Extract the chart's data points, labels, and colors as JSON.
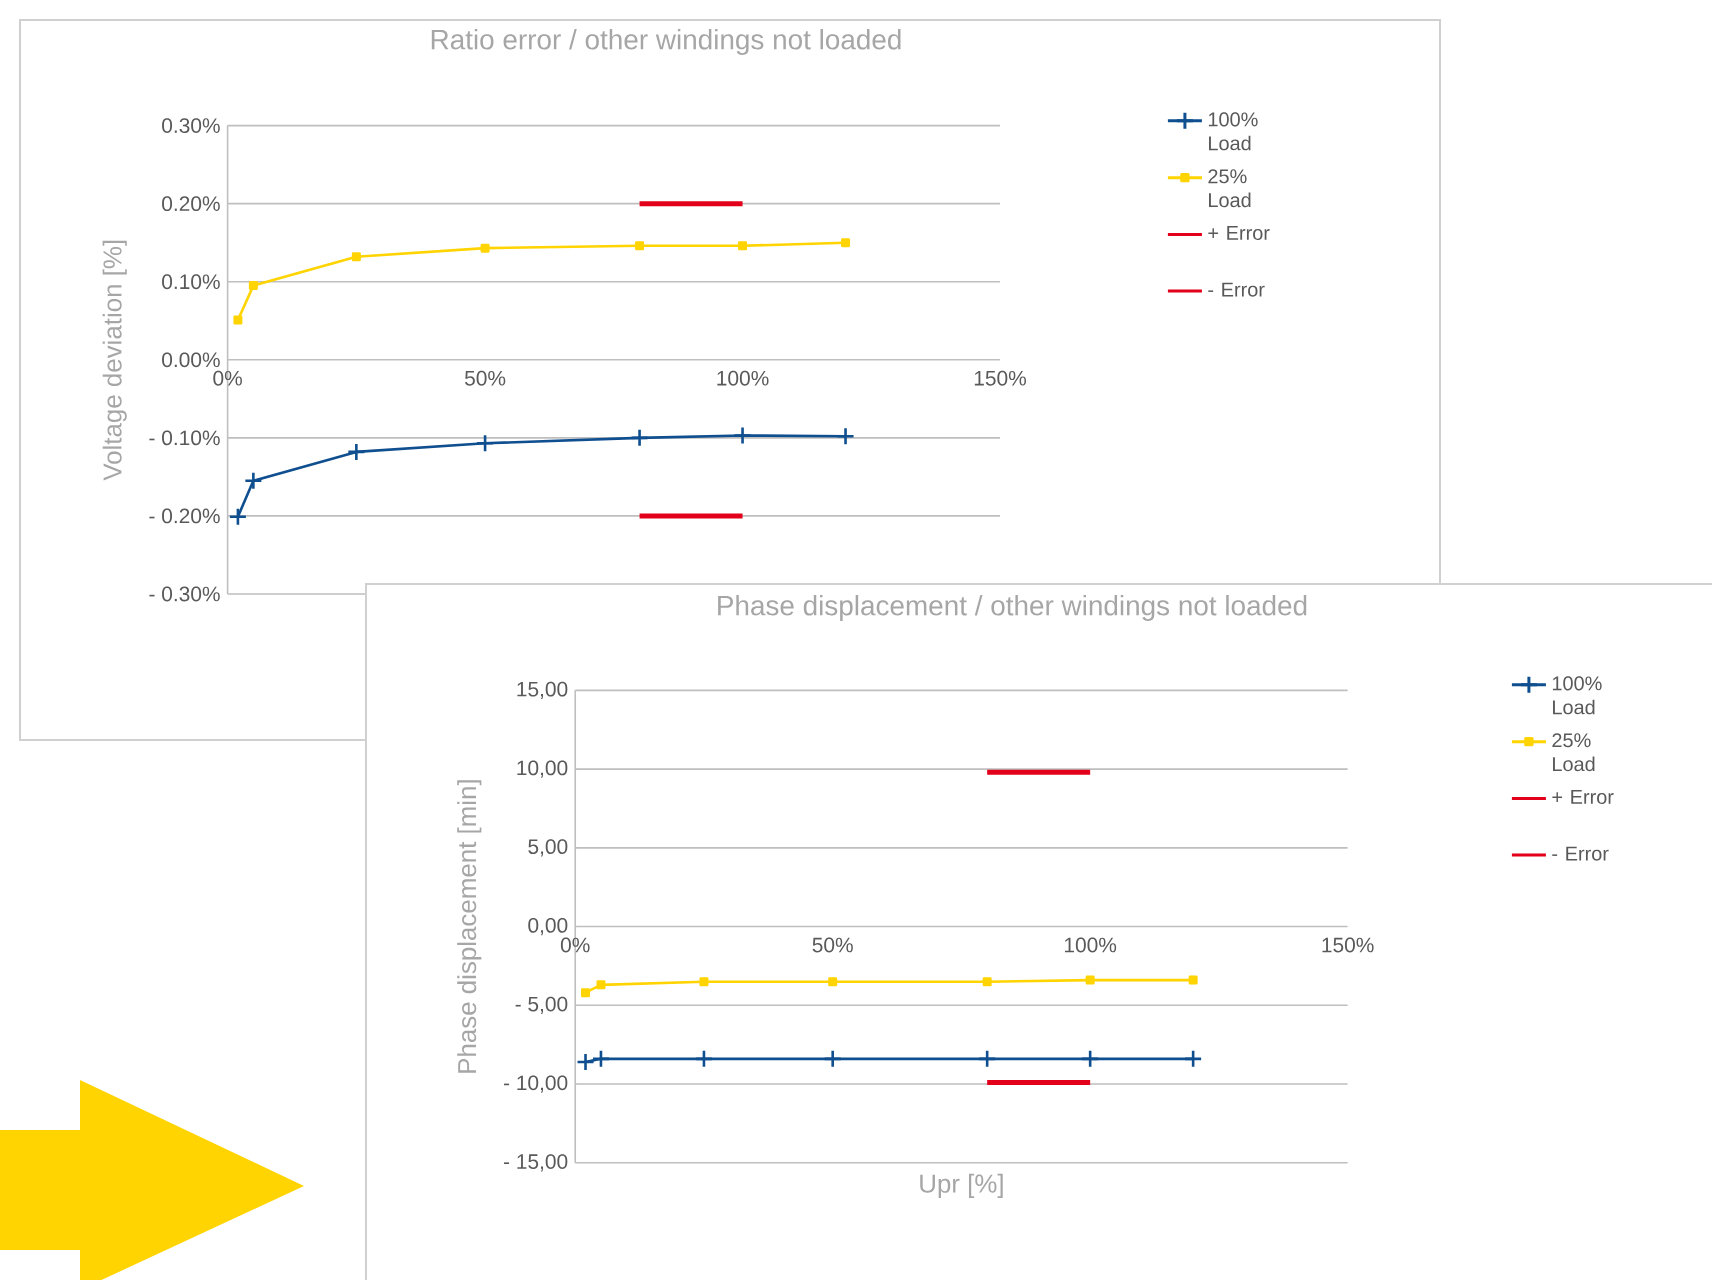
{
  "chart_data": [
    {
      "type": "line",
      "title": "Ratio error / other windings not loaded",
      "ylabel": "Voltage deviation [%]",
      "xlim": [
        0,
        150
      ],
      "ylim": [
        -0.3,
        0.3
      ],
      "xticks": [
        {
          "value": 0,
          "label": "0%"
        },
        {
          "value": 50,
          "label": "50%"
        },
        {
          "value": 100,
          "label": "100%"
        },
        {
          "value": 150,
          "label": "150%"
        }
      ],
      "yticks": [
        {
          "value": -0.3,
          "label": "- 0.30%"
        },
        {
          "value": -0.2,
          "label": "- 0.20%"
        },
        {
          "value": -0.1,
          "label": "- 0.10%"
        },
        {
          "value": 0,
          "label": "0.00%"
        },
        {
          "value": 0.1,
          "label": "0.10%"
        },
        {
          "value": 0.2,
          "label": "0.20%"
        },
        {
          "value": 0.3,
          "label": "0.30%"
        }
      ],
      "grid": "y",
      "legend": "right",
      "series": [
        {
          "name": "100% Load",
          "color": "#0f4f8f",
          "marker": "cross",
          "x": [
            2,
            5,
            25,
            50,
            80,
            100,
            120
          ],
          "values": [
            -0.201,
            -0.155,
            -0.118,
            -0.107,
            -0.1,
            -0.097,
            -0.098
          ]
        },
        {
          "name": "25% Load",
          "color": "#ffd400",
          "marker": "square",
          "x": [
            2,
            5,
            25,
            50,
            80,
            100,
            120
          ],
          "values": [
            0.051,
            0.095,
            0.132,
            0.143,
            0.146,
            0.146,
            0.15
          ]
        },
        {
          "name": "+ Error",
          "color": "#e2001a",
          "x": [
            80,
            100
          ],
          "values": [
            0.2,
            0.2
          ]
        },
        {
          "name": "- Error",
          "color": "#e2001a",
          "x": [
            80,
            100
          ],
          "values": [
            -0.2,
            -0.2
          ]
        }
      ]
    },
    {
      "type": "line",
      "title": "Phase displacement / other windings not loaded",
      "xlabel": "Upr [%]",
      "ylabel": "Phase displacement [min]",
      "xlim": [
        0,
        150
      ],
      "ylim": [
        -15,
        15
      ],
      "xticks": [
        {
          "value": 0,
          "label": "0%"
        },
        {
          "value": 50,
          "label": "50%"
        },
        {
          "value": 100,
          "label": "100%"
        },
        {
          "value": 150,
          "label": "150%"
        }
      ],
      "yticks": [
        {
          "value": -15,
          "label": "- 15,00"
        },
        {
          "value": -10,
          "label": "- 10,00"
        },
        {
          "value": -5,
          "label": "- 5,00"
        },
        {
          "value": 0,
          "label": "0,00"
        },
        {
          "value": 5,
          "label": "5,00"
        },
        {
          "value": 10,
          "label": "10,00"
        },
        {
          "value": 15,
          "label": "15,00"
        }
      ],
      "grid": "y",
      "legend": "right",
      "series": [
        {
          "name": "100% Load",
          "color": "#0f4f8f",
          "marker": "cross",
          "x": [
            2,
            5,
            25,
            50,
            80,
            100,
            120
          ],
          "values": [
            -8.6,
            -8.4,
            -8.4,
            -8.4,
            -8.4,
            -8.4,
            -8.4
          ]
        },
        {
          "name": "25% Load",
          "color": "#ffd400",
          "marker": "square",
          "x": [
            2,
            5,
            25,
            50,
            80,
            100,
            120
          ],
          "values": [
            -4.2,
            -3.7,
            -3.5,
            -3.5,
            -3.5,
            -3.4,
            -3.4
          ]
        },
        {
          "name": "+ Error",
          "color": "#e2001a",
          "x": [
            80,
            100
          ],
          "values": [
            9.8,
            9.8
          ]
        },
        {
          "name": "- Error",
          "color": "#e2001a",
          "x": [
            80,
            100
          ],
          "values": [
            -9.9,
            -9.9
          ]
        }
      ]
    }
  ]
}
